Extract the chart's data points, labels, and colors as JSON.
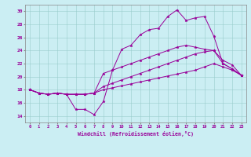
{
  "xlabel": "Windchill (Refroidissement éolien,°C)",
  "ylabel": "",
  "bg_color": "#cbeef3",
  "line_color": "#990099",
  "grid_color": "#aadddd",
  "xlim": [
    -0.5,
    23.5
  ],
  "ylim": [
    13.0,
    31.0
  ],
  "xticks": [
    0,
    1,
    2,
    3,
    4,
    5,
    6,
    7,
    8,
    9,
    10,
    11,
    12,
    13,
    14,
    15,
    16,
    17,
    18,
    19,
    20,
    21,
    22,
    23
  ],
  "yticks": [
    14,
    16,
    18,
    20,
    22,
    24,
    26,
    28,
    30
  ],
  "series": [
    [
      18.0,
      17.5,
      17.3,
      17.5,
      17.3,
      15.0,
      15.0,
      14.2,
      16.2,
      21.0,
      24.2,
      24.8,
      26.4,
      27.2,
      27.4,
      29.2,
      30.2,
      28.6,
      29.0,
      29.2,
      26.2,
      22.0,
      21.2,
      20.2
    ],
    [
      18.0,
      17.5,
      17.3,
      17.5,
      17.3,
      17.3,
      17.3,
      17.5,
      20.5,
      21.0,
      21.5,
      22.0,
      22.5,
      23.0,
      23.5,
      24.0,
      24.5,
      24.8,
      24.5,
      24.2,
      24.0,
      22.0,
      21.2,
      20.2
    ],
    [
      18.0,
      17.5,
      17.3,
      17.5,
      17.3,
      17.3,
      17.3,
      17.5,
      18.5,
      19.0,
      19.5,
      20.0,
      20.5,
      21.0,
      21.5,
      22.0,
      22.5,
      23.0,
      23.5,
      23.8,
      24.0,
      22.5,
      21.8,
      20.2
    ],
    [
      18.0,
      17.5,
      17.3,
      17.5,
      17.3,
      17.3,
      17.3,
      17.5,
      18.0,
      18.3,
      18.6,
      18.9,
      19.2,
      19.5,
      19.8,
      20.1,
      20.4,
      20.7,
      21.0,
      21.5,
      22.0,
      21.5,
      21.0,
      20.2
    ]
  ]
}
